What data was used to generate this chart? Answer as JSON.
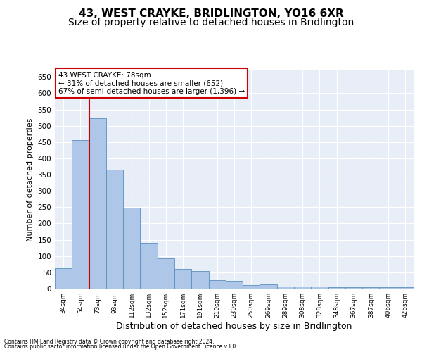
{
  "title": "43, WEST CRAYKE, BRIDLINGTON, YO16 6XR",
  "subtitle": "Size of property relative to detached houses in Bridlington",
  "xlabel": "Distribution of detached houses by size in Bridlington",
  "ylabel": "Number of detached properties",
  "categories": [
    "34sqm",
    "54sqm",
    "73sqm",
    "93sqm",
    "112sqm",
    "132sqm",
    "152sqm",
    "171sqm",
    "191sqm",
    "210sqm",
    "230sqm",
    "250sqm",
    "269sqm",
    "289sqm",
    "308sqm",
    "328sqm",
    "348sqm",
    "367sqm",
    "387sqm",
    "406sqm",
    "426sqm"
  ],
  "values": [
    62,
    456,
    524,
    365,
    248,
    140,
    92,
    60,
    55,
    25,
    24,
    11,
    12,
    7,
    7,
    6,
    5,
    5,
    5,
    4,
    4
  ],
  "bar_color": "#aec6e8",
  "bar_edge_color": "#5a8fc0",
  "marker_index": 2,
  "marker_color": "#cc0000",
  "annotation_text": "43 WEST CRAYKE: 78sqm\n← 31% of detached houses are smaller (652)\n67% of semi-detached houses are larger (1,396) →",
  "annotation_box_color": "white",
  "annotation_box_edge_color": "#cc0000",
  "ylim": [
    0,
    670
  ],
  "yticks": [
    0,
    50,
    100,
    150,
    200,
    250,
    300,
    350,
    400,
    450,
    500,
    550,
    600,
    650
  ],
  "background_color": "#e8eef7",
  "title_fontsize": 11,
  "subtitle_fontsize": 10,
  "xlabel_fontsize": 9,
  "ylabel_fontsize": 8,
  "footer_line1": "Contains HM Land Registry data © Crown copyright and database right 2024.",
  "footer_line2": "Contains public sector information licensed under the Open Government Licence v3.0."
}
